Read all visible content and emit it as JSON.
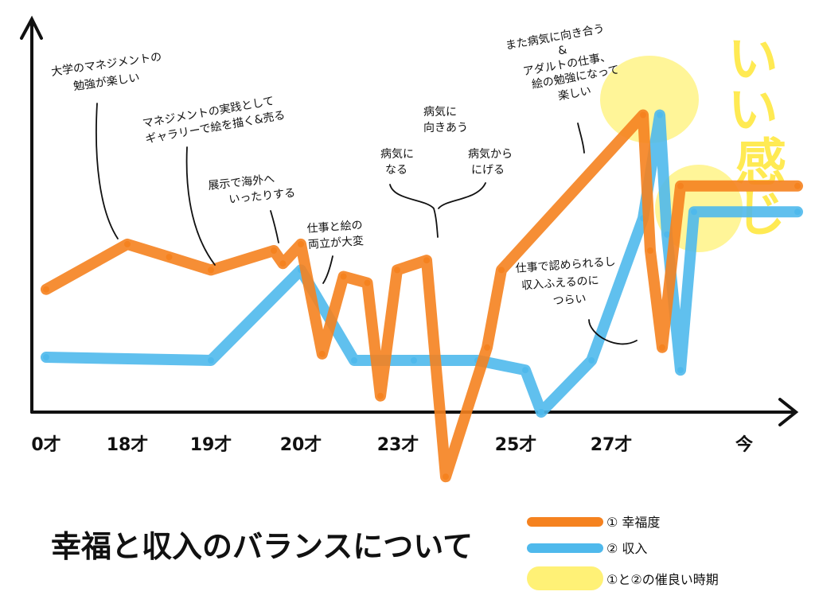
{
  "title": "幸福と収入のバランスについて",
  "chart_data": {
    "type": "line",
    "x_ticks": [
      "0才",
      "18才",
      "19才",
      "20才",
      "23才",
      "25才",
      "27才",
      "今"
    ],
    "ylim": [
      0,
      100
    ],
    "series": [
      {
        "name": "① 幸福度",
        "color": "#f5821f",
        "points": [
          [
            0,
            38
          ],
          [
            18,
            52
          ],
          [
            18.5,
            48
          ],
          [
            19,
            44
          ],
          [
            19.7,
            50
          ],
          [
            19.8,
            46
          ],
          [
            20,
            52
          ],
          [
            20.4,
            18
          ],
          [
            20.8,
            42
          ],
          [
            21.5,
            40
          ],
          [
            22,
            5
          ],
          [
            22.5,
            44
          ],
          [
            23.2,
            47
          ],
          [
            23.5,
            -20
          ],
          [
            24.2,
            20
          ],
          [
            24.5,
            44
          ],
          [
            27,
            92
          ],
          [
            27.3,
            50
          ],
          [
            27.8,
            20
          ],
          [
            28.5,
            70
          ],
          [
            30,
            70
          ]
        ]
      },
      {
        "name": "② 収入",
        "color": "#4fb9ec",
        "points": [
          [
            0,
            17
          ],
          [
            19,
            16
          ],
          [
            20,
            44
          ],
          [
            21,
            16
          ],
          [
            23,
            16
          ],
          [
            24,
            16
          ],
          [
            25,
            13
          ],
          [
            25.5,
            0
          ],
          [
            26.4,
            16
          ],
          [
            27,
            60
          ],
          [
            27.7,
            92
          ],
          [
            28,
            55
          ],
          [
            28.5,
            13
          ],
          [
            29,
            62
          ],
          [
            30,
            62
          ]
        ]
      }
    ]
  },
  "annotations": [
    {
      "lines": [
        "大学のマネジメントの",
        "勉強が楽しい"
      ]
    },
    {
      "lines": [
        "マネジメントの実践として",
        "ギャラリーで絵を描く&売る"
      ]
    },
    {
      "lines": [
        "展示で海外へ",
        "いったりする"
      ]
    },
    {
      "lines": [
        "仕事と絵の",
        "両立が大変"
      ]
    },
    {
      "lines": [
        "病気に",
        "向きあう"
      ]
    },
    {
      "lines": [
        "病気に",
        "なる"
      ]
    },
    {
      "lines": [
        "病気から",
        "にげる"
      ]
    },
    {
      "lines": [
        "また病気に向き合う",
        "&",
        "アダルトの仕事、",
        "絵の勉強になって",
        "楽しい"
      ]
    },
    {
      "lines": [
        "仕事で認められるし",
        "収入ふえるのに",
        "つらい"
      ]
    }
  ],
  "big_text": [
    "いい",
    "感じ"
  ],
  "legend": [
    {
      "label": "① 幸福度",
      "color": "#f5821f"
    },
    {
      "label": "② 収入",
      "color": "#4fb9ec"
    },
    {
      "label": "①と②の催良い時期",
      "color": "#fff176"
    }
  ]
}
